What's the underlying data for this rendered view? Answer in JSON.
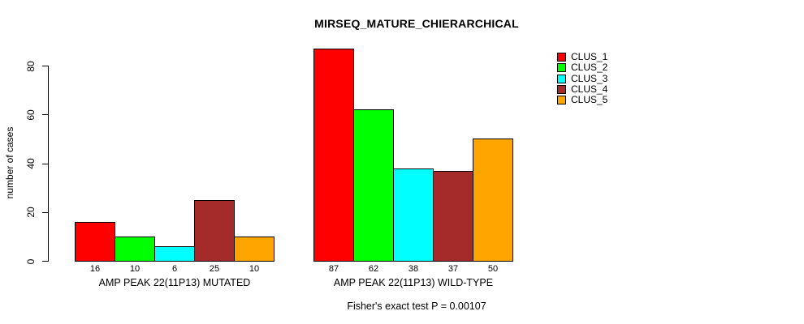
{
  "title": "MIRSEQ_MATURE_CHIERARCHICAL",
  "colors": {
    "background": "#FFFFFF",
    "text": "#000000",
    "axis": "#000000"
  },
  "chart_data": {
    "type": "bar",
    "title": "MIRSEQ_MATURE_CHIERARCHICAL",
    "xlabel": "",
    "ylabel": "number of cases",
    "ylim": [
      0,
      88
    ],
    "yticks": [
      0,
      20,
      40,
      60,
      80
    ],
    "grid": false,
    "bar_value_labels_shown": true,
    "categories": [
      "AMP PEAK 22(11P13) MUTATED",
      "AMP PEAK 22(11P13) WILD-TYPE"
    ],
    "series": [
      {
        "name": "CLUS_1",
        "color": "#FF0000",
        "values": [
          16,
          87
        ]
      },
      {
        "name": "CLUS_2",
        "color": "#00FF00",
        "values": [
          10,
          62
        ]
      },
      {
        "name": "CLUS_3",
        "color": "#00FFFF",
        "values": [
          6,
          38
        ]
      },
      {
        "name": "CLUS_4",
        "color": "#A52A2A",
        "values": [
          25,
          37
        ]
      },
      {
        "name": "CLUS_5",
        "color": "#FFA500",
        "values": [
          10,
          50
        ]
      }
    ],
    "legend": {
      "position": "top-right",
      "entries": [
        "CLUS_1",
        "CLUS_2",
        "CLUS_3",
        "CLUS_4",
        "CLUS_5"
      ]
    },
    "caption": "Fisher's exact test P = 0.00107"
  }
}
